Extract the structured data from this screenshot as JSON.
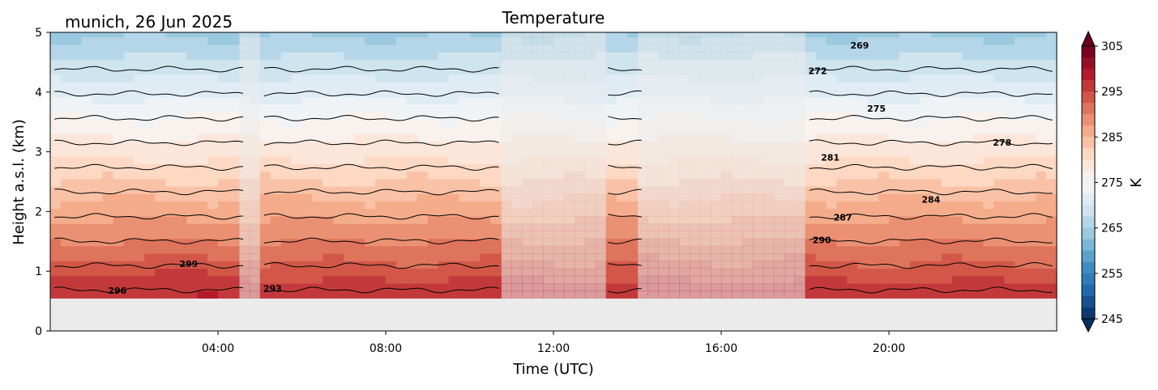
{
  "figure": {
    "title": "Temperature",
    "subtitle": "munich, 26 Jun 2025"
  },
  "chart_data": {
    "type": "heatmap",
    "title": "Temperature",
    "subtitle": "munich, 26 Jun 2025",
    "xlabel": "Time (UTC)",
    "ylabel": "Height a.s.l. (km)",
    "xlim_hours": [
      0,
      24
    ],
    "ylim_km": [
      0,
      5
    ],
    "x_ticks": [
      {
        "hour": 4,
        "label": "04:00"
      },
      {
        "hour": 8,
        "label": "08:00"
      },
      {
        "hour": 12,
        "label": "12:00"
      },
      {
        "hour": 16,
        "label": "16:00"
      },
      {
        "hour": 20,
        "label": "20:00"
      }
    ],
    "y_ticks": [
      0,
      1,
      2,
      3,
      4,
      5
    ],
    "colorbar": {
      "label": "K",
      "range": [
        245,
        305
      ],
      "ticks": [
        245,
        255,
        265,
        275,
        285,
        295,
        305
      ],
      "colormap": "RdBu_r",
      "extend": "both"
    },
    "data_bottom_km": 0.55,
    "surface_temperature_K": 301,
    "lapse_rate_K_per_km": 7.3,
    "valid_segments_hours": [
      [
        0.1,
        4.6
      ],
      [
        5.1,
        10.7
      ],
      [
        13.3,
        14.1
      ],
      [
        18.1,
        23.9
      ]
    ],
    "contour_levels_K": [
      269,
      272,
      275,
      278,
      281,
      284,
      287,
      290,
      293,
      296,
      299
    ],
    "contour_labels": [
      {
        "text": "269",
        "hour": 19.3,
        "km": 4.73
      },
      {
        "text": "272",
        "hour": 18.3,
        "km": 4.3
      },
      {
        "text": "275",
        "hour": 19.7,
        "km": 3.67
      },
      {
        "text": "278",
        "hour": 22.7,
        "km": 3.1
      },
      {
        "text": "281",
        "hour": 18.6,
        "km": 2.85
      },
      {
        "text": "284",
        "hour": 21.0,
        "km": 2.15
      },
      {
        "text": "287",
        "hour": 18.9,
        "km": 1.85
      },
      {
        "text": "290",
        "hour": 18.4,
        "km": 1.47
      },
      {
        "text": "293",
        "hour": 5.3,
        "km": 0.66
      },
      {
        "text": "296",
        "hour": 1.6,
        "km": 0.62
      },
      {
        "text": "299",
        "hour": 3.3,
        "km": 1.07
      }
    ],
    "grid": false
  }
}
